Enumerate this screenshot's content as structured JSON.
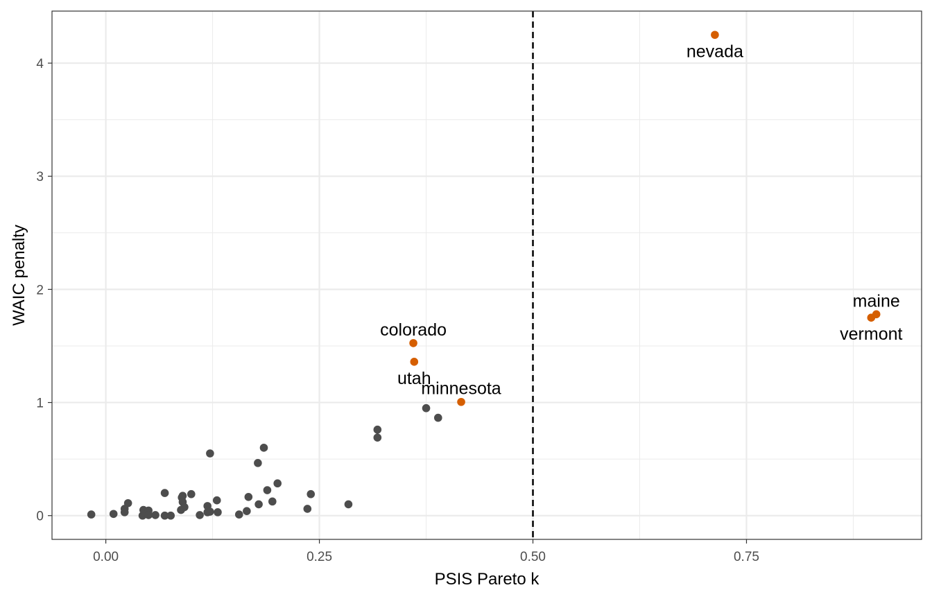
{
  "chart_data": {
    "type": "scatter",
    "title": "",
    "xlabel": "PSIS Pareto k",
    "ylabel": "WAIC penalty",
    "xlim": [
      -0.063,
      0.955
    ],
    "ylim": [
      -0.21,
      4.46
    ],
    "x_ticks": [
      0.0,
      0.25,
      0.5,
      0.75
    ],
    "x_tick_labels": [
      "0.00",
      "0.25",
      "0.50",
      "0.75"
    ],
    "x_minor_ticks": [
      0.125,
      0.375,
      0.625,
      0.875
    ],
    "y_ticks": [
      0,
      1,
      2,
      3,
      4
    ],
    "y_tick_labels": [
      "0",
      "1",
      "2",
      "3",
      "4"
    ],
    "y_minor_ticks": [
      0.5,
      1.5,
      2.5,
      3.5
    ],
    "grid": true,
    "reference_line": {
      "axis": "x",
      "value": 0.5,
      "style": "dashed",
      "color": "#000000"
    },
    "colors": {
      "default": "#4d4d4d",
      "highlight": "#d55e00"
    },
    "series": [
      {
        "color": "#4d4d4d",
        "points": [
          {
            "x": -0.017,
            "y": 0.01
          },
          {
            "x": 0.009,
            "y": 0.015
          },
          {
            "x": 0.022,
            "y": 0.06
          },
          {
            "x": 0.022,
            "y": 0.03
          },
          {
            "x": 0.026,
            "y": 0.11
          },
          {
            "x": 0.043,
            "y": 0.0
          },
          {
            "x": 0.044,
            "y": 0.05
          },
          {
            "x": 0.049,
            "y": 0.02
          },
          {
            "x": 0.05,
            "y": 0.045
          },
          {
            "x": 0.05,
            "y": 0.005
          },
          {
            "x": 0.058,
            "y": 0.005
          },
          {
            "x": 0.069,
            "y": 0.0
          },
          {
            "x": 0.069,
            "y": 0.2
          },
          {
            "x": 0.076,
            "y": 0.0
          },
          {
            "x": 0.088,
            "y": 0.05
          },
          {
            "x": 0.089,
            "y": 0.16
          },
          {
            "x": 0.09,
            "y": 0.175
          },
          {
            "x": 0.09,
            "y": 0.12
          },
          {
            "x": 0.092,
            "y": 0.075
          },
          {
            "x": 0.1,
            "y": 0.19
          },
          {
            "x": 0.11,
            "y": 0.005
          },
          {
            "x": 0.119,
            "y": 0.085
          },
          {
            "x": 0.119,
            "y": 0.03
          },
          {
            "x": 0.122,
            "y": 0.035
          },
          {
            "x": 0.122,
            "y": 0.55
          },
          {
            "x": 0.13,
            "y": 0.135
          },
          {
            "x": 0.131,
            "y": 0.03
          },
          {
            "x": 0.156,
            "y": 0.01
          },
          {
            "x": 0.165,
            "y": 0.04
          },
          {
            "x": 0.167,
            "y": 0.165
          },
          {
            "x": 0.178,
            "y": 0.465
          },
          {
            "x": 0.179,
            "y": 0.1
          },
          {
            "x": 0.185,
            "y": 0.6
          },
          {
            "x": 0.189,
            "y": 0.225
          },
          {
            "x": 0.195,
            "y": 0.125
          },
          {
            "x": 0.201,
            "y": 0.285
          },
          {
            "x": 0.236,
            "y": 0.06
          },
          {
            "x": 0.24,
            "y": 0.19
          },
          {
            "x": 0.284,
            "y": 0.1
          },
          {
            "x": 0.318,
            "y": 0.76
          },
          {
            "x": 0.318,
            "y": 0.69
          },
          {
            "x": 0.375,
            "y": 0.95
          },
          {
            "x": 0.389,
            "y": 0.865
          }
        ]
      },
      {
        "color": "#d55e00",
        "points": [
          {
            "x": 0.36,
            "y": 1.525,
            "label": "colorado",
            "label_pos": "above"
          },
          {
            "x": 0.361,
            "y": 1.36,
            "label": "utah",
            "label_pos": "below"
          },
          {
            "x": 0.416,
            "y": 1.005,
            "label": "minnesota",
            "label_pos": "above"
          },
          {
            "x": 0.713,
            "y": 4.25,
            "label": "nevada",
            "label_pos": "below"
          },
          {
            "x": 0.902,
            "y": 1.78,
            "label": "maine",
            "label_pos": "above"
          },
          {
            "x": 0.896,
            "y": 1.75,
            "label": "vermont",
            "label_pos": "below"
          }
        ]
      }
    ]
  }
}
